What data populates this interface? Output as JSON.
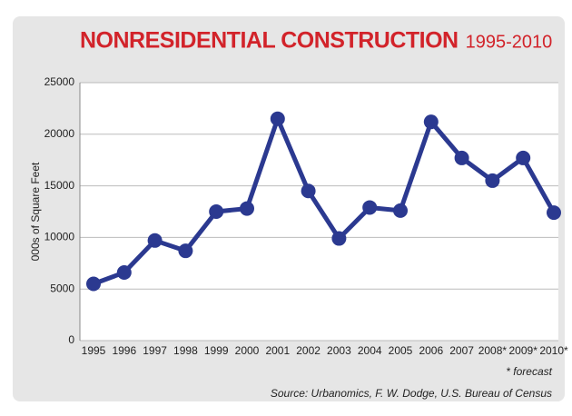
{
  "chart_data": {
    "type": "line",
    "title": "NONRESIDENTIAL CONSTRUCTION",
    "subtitle": "1995-2010",
    "y_label": "000s of Square Feet",
    "annotations": [
      "* forecast",
      "Source: Urbanomics, F. W. Dodge, U.S. Bureau of Census"
    ],
    "categories": [
      "1995",
      "1996",
      "1997",
      "1998",
      "1999",
      "2000",
      "2001",
      "2002",
      "2003",
      "2004",
      "2005",
      "2006",
      "2007",
      "2008*",
      "2009*",
      "2010*"
    ],
    "series": [
      {
        "name": "Nonresidential construction",
        "color": "#2b3990",
        "values": [
          5500,
          6600,
          9700,
          8700,
          12500,
          12800,
          21500,
          14500,
          9900,
          12900,
          12600,
          21200,
          17700,
          15500,
          17700,
          12400
        ]
      }
    ],
    "ylim": [
      0,
      25000
    ],
    "yticks": [
      0,
      5000,
      10000,
      15000,
      20000,
      25000
    ],
    "grid": true,
    "title_color": "#d2232a"
  }
}
